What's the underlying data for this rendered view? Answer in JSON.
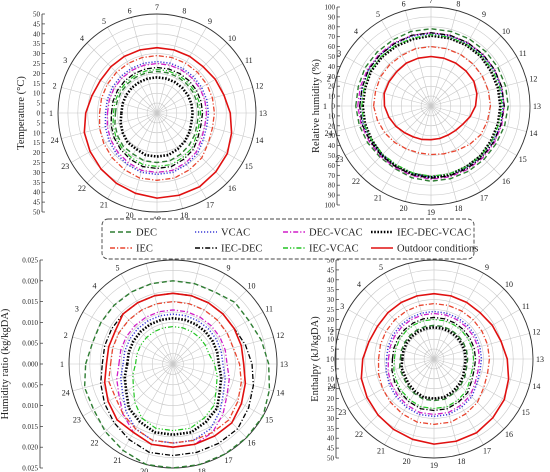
{
  "chart_data": [
    {
      "type": "line",
      "subtype": "polar-radar",
      "ylabel": "Temperature (°C)",
      "ylim": [
        0,
        50
      ],
      "rticks": [
        "50",
        "45",
        "40",
        "35",
        "30",
        "25",
        "20",
        "15",
        "10",
        "5",
        "0",
        "5",
        "10",
        "15",
        "20",
        "25",
        "30",
        "35",
        "40",
        "45",
        "50"
      ],
      "x": [
        1,
        2,
        3,
        4,
        5,
        6,
        7,
        8,
        9,
        10,
        11,
        12,
        13,
        14,
        15,
        16,
        17,
        18,
        19,
        20,
        21,
        22,
        23,
        24
      ],
      "series": [
        {
          "name": "DEC",
          "values": [
            21,
            21,
            21,
            21,
            21,
            21,
            21,
            21,
            21,
            21,
            21,
            21,
            21,
            21,
            22,
            23,
            24,
            25,
            25,
            25,
            24,
            24,
            23,
            22
          ]
        },
        {
          "name": "VCAC",
          "values": [
            26,
            26,
            26,
            26,
            26,
            26,
            26,
            26,
            26,
            26,
            26,
            26,
            26,
            26,
            27,
            29,
            30,
            31,
            31,
            31,
            30,
            29,
            28,
            27
          ]
        },
        {
          "name": "DEC-VCAC",
          "values": [
            25,
            25,
            25,
            25,
            25,
            25,
            25,
            25,
            25,
            25,
            25,
            25,
            25,
            25,
            26,
            28,
            29,
            30,
            30,
            30,
            29,
            28,
            27,
            26
          ]
        },
        {
          "name": "IEC-DEC-VCAC",
          "values": [
            18,
            18,
            18,
            18,
            18,
            18,
            18,
            18,
            18,
            18,
            18,
            18,
            18,
            18,
            19,
            20,
            21,
            22,
            22,
            22,
            21,
            21,
            20,
            19
          ]
        },
        {
          "name": "IEC",
          "values": [
            29,
            29,
            29,
            29,
            29,
            29,
            29,
            29,
            29,
            29,
            29,
            29,
            29,
            29,
            30,
            32,
            33,
            34,
            34,
            34,
            33,
            32,
            31,
            30
          ]
        },
        {
          "name": "IEC-DEC",
          "values": [
            23,
            23,
            23,
            23,
            23,
            23,
            23,
            23,
            23,
            23,
            23,
            23,
            23,
            23,
            24,
            26,
            27,
            28,
            28,
            28,
            27,
            26,
            25,
            24
          ]
        },
        {
          "name": "IEC-VCAC",
          "values": [
            22,
            22,
            22,
            22,
            22,
            22,
            22,
            22,
            22,
            22,
            22,
            22,
            22,
            22,
            23,
            25,
            26,
            27,
            27,
            27,
            26,
            25,
            24,
            23
          ]
        },
        {
          "name": "Outdoor conditions",
          "values": [
            36,
            34,
            33,
            33,
            33,
            33,
            33,
            33,
            33,
            33,
            34,
            35,
            37,
            39,
            41,
            42,
            43,
            43,
            43,
            42,
            41,
            40,
            39,
            38
          ]
        }
      ]
    },
    {
      "type": "line",
      "subtype": "polar-radar",
      "ylabel": "Relative humidity (%)",
      "ylim": [
        0,
        100
      ],
      "rticks": [
        "100",
        "90",
        "80",
        "70",
        "60",
        "50",
        "40",
        "30",
        "20",
        "10",
        "0",
        "10",
        "20",
        "30",
        "40",
        "50",
        "60",
        "70",
        "80",
        "90",
        "100"
      ],
      "x": [
        1,
        2,
        3,
        4,
        5,
        6,
        7,
        8,
        9,
        10,
        11,
        12,
        13,
        14,
        15,
        16,
        17,
        18,
        19,
        20,
        21,
        22,
        23,
        24
      ],
      "series": [
        {
          "name": "DEC",
          "values": [
            76,
            76,
            77,
            77,
            77,
            78,
            78,
            78,
            78,
            78,
            78,
            78,
            78,
            77,
            76,
            76,
            76,
            76,
            76,
            75,
            73,
            73,
            74,
            75
          ]
        },
        {
          "name": "VCAC",
          "values": [
            72,
            72,
            73,
            73,
            73,
            73,
            73,
            73,
            73,
            73,
            73,
            73,
            73,
            73,
            72,
            72,
            72,
            72,
            72,
            71,
            70,
            70,
            70,
            71
          ]
        },
        {
          "name": "DEC-VCAC",
          "values": [
            74,
            74,
            74,
            74,
            74,
            74,
            74,
            74,
            74,
            74,
            74,
            74,
            74,
            74,
            74,
            74,
            74,
            74,
            74,
            73,
            72,
            72,
            72,
            73
          ]
        },
        {
          "name": "IEC-DEC-VCAC",
          "values": [
            69,
            69,
            70,
            70,
            70,
            70,
            71,
            71,
            71,
            71,
            70,
            70,
            70,
            70,
            70,
            71,
            71,
            72,
            72,
            71,
            70,
            70,
            69,
            69
          ]
        },
        {
          "name": "IEC",
          "values": [
            58,
            58,
            59,
            59,
            59,
            60,
            60,
            60,
            60,
            60,
            60,
            60,
            60,
            59,
            58,
            55,
            52,
            50,
            49,
            49,
            50,
            52,
            54,
            56
          ]
        },
        {
          "name": "IEC-DEC",
          "values": [
            72,
            72,
            73,
            73,
            73,
            74,
            74,
            74,
            74,
            74,
            74,
            74,
            74,
            73,
            73,
            73,
            73,
            73,
            73,
            72,
            71,
            71,
            71,
            72
          ]
        },
        {
          "name": "IEC-VCAC",
          "values": [
            70,
            70,
            71,
            71,
            71,
            71,
            72,
            72,
            72,
            72,
            72,
            72,
            72,
            71,
            71,
            71,
            71,
            71,
            71,
            70,
            69,
            69,
            69,
            70
          ]
        },
        {
          "name": "Outdoor conditions",
          "values": [
            47,
            49,
            49,
            49,
            50,
            50,
            50,
            50,
            50,
            50,
            50,
            48,
            45,
            41,
            37,
            35,
            34,
            34,
            34,
            35,
            36,
            38,
            41,
            44
          ]
        }
      ]
    },
    {
      "type": "line",
      "subtype": "polar-radar",
      "ylabel": "Humidity ratio (kg/kgDA)",
      "ylim": [
        0,
        0.025
      ],
      "rticks": [
        "0.025",
        "0.020",
        "0.015",
        "0.010",
        "0.005",
        "0.000",
        "0.005",
        "0.010",
        "0.015",
        "0.020",
        "0.025"
      ],
      "x": [
        1,
        2,
        3,
        4,
        5,
        6,
        7,
        8,
        9,
        10,
        11,
        12,
        13,
        14,
        15,
        16,
        17,
        18,
        19,
        20,
        21,
        22,
        23,
        24
      ],
      "series": [
        {
          "name": "DEC",
          "values": [
            0.021,
            0.02,
            0.02,
            0.02,
            0.02,
            0.02,
            0.02,
            0.02,
            0.02,
            0.021,
            0.021,
            0.022,
            0.023,
            0.024,
            0.025,
            0.025,
            0.025,
            0.025,
            0.025,
            0.025,
            0.024,
            0.023,
            0.022,
            0.022
          ]
        },
        {
          "name": "VCAC",
          "values": [
            0.012,
            0.012,
            0.012,
            0.012,
            0.012,
            0.012,
            0.012,
            0.012,
            0.012,
            0.012,
            0.012,
            0.012,
            0.012,
            0.013,
            0.014,
            0.016,
            0.018,
            0.019,
            0.019,
            0.019,
            0.018,
            0.016,
            0.014,
            0.013
          ]
        },
        {
          "name": "DEC-VCAC",
          "values": [
            0.013,
            0.013,
            0.013,
            0.013,
            0.013,
            0.013,
            0.013,
            0.013,
            0.013,
            0.013,
            0.013,
            0.013,
            0.013,
            0.014,
            0.015,
            0.017,
            0.019,
            0.02,
            0.02,
            0.02,
            0.019,
            0.017,
            0.015,
            0.014
          ]
        },
        {
          "name": "IEC-DEC-VCAC",
          "values": [
            0.011,
            0.011,
            0.011,
            0.011,
            0.011,
            0.011,
            0.011,
            0.011,
            0.011,
            0.011,
            0.011,
            0.011,
            0.011,
            0.012,
            0.013,
            0.015,
            0.016,
            0.017,
            0.017,
            0.017,
            0.016,
            0.015,
            0.013,
            0.012
          ]
        },
        {
          "name": "IEC",
          "values": [
            0.015,
            0.015,
            0.015,
            0.015,
            0.015,
            0.015,
            0.015,
            0.015,
            0.015,
            0.015,
            0.015,
            0.015,
            0.016,
            0.017,
            0.018,
            0.019,
            0.019,
            0.019,
            0.019,
            0.019,
            0.018,
            0.017,
            0.016,
            0.016
          ]
        },
        {
          "name": "IEC-DEC",
          "values": [
            0.017,
            0.017,
            0.017,
            0.017,
            0.017,
            0.017,
            0.017,
            0.017,
            0.017,
            0.017,
            0.017,
            0.018,
            0.019,
            0.02,
            0.021,
            0.022,
            0.022,
            0.022,
            0.022,
            0.022,
            0.021,
            0.02,
            0.019,
            0.018
          ]
        },
        {
          "name": "IEC-VCAC",
          "values": [
            0.009,
            0.009,
            0.009,
            0.009,
            0.009,
            0.009,
            0.009,
            0.009,
            0.009,
            0.009,
            0.009,
            0.009,
            0.01,
            0.011,
            0.012,
            0.014,
            0.015,
            0.016,
            0.016,
            0.016,
            0.015,
            0.013,
            0.011,
            0.01
          ]
        },
        {
          "name": "Outdoor conditions",
          "values": [
            0.016,
            0.016,
            0.016,
            0.017,
            0.017,
            0.017,
            0.017,
            0.017,
            0.017,
            0.017,
            0.017,
            0.017,
            0.017,
            0.018,
            0.019,
            0.02,
            0.02,
            0.02,
            0.02,
            0.02,
            0.019,
            0.019,
            0.018,
            0.017
          ]
        }
      ]
    },
    {
      "type": "line",
      "subtype": "polar-radar",
      "ylabel": "Enthalpy (kJ/kgDA)",
      "ylim": [
        0,
        50
      ],
      "rticks": [
        "50",
        "45",
        "40",
        "35",
        "30",
        "25",
        "20",
        "15",
        "10",
        "5",
        "0",
        "5",
        "10",
        "15",
        "20",
        "25",
        "30",
        "35",
        "40",
        "45",
        "50"
      ],
      "x": [
        1,
        2,
        3,
        4,
        5,
        6,
        7,
        8,
        9,
        10,
        11,
        12,
        13,
        14,
        15,
        16,
        17,
        18,
        19,
        20,
        21,
        22,
        23,
        24
      ],
      "series": [
        {
          "name": "DEC",
          "values": [
            17,
            17,
            17,
            17,
            17,
            17,
            17,
            17,
            17,
            17,
            17,
            17,
            17,
            17,
            18,
            19,
            20,
            21,
            21,
            21,
            20,
            19,
            18,
            18
          ]
        },
        {
          "name": "VCAC",
          "values": [
            24,
            24,
            24,
            24,
            24,
            24,
            24,
            24,
            24,
            24,
            24,
            24,
            24,
            24,
            25,
            27,
            28,
            29,
            29,
            29,
            28,
            27,
            26,
            25
          ]
        },
        {
          "name": "DEC-VCAC",
          "values": [
            23,
            23,
            23,
            23,
            23,
            23,
            23,
            23,
            23,
            23,
            23,
            23,
            23,
            23,
            24,
            26,
            27,
            28,
            28,
            28,
            27,
            26,
            25,
            24
          ]
        },
        {
          "name": "IEC-DEC-VCAC",
          "values": [
            16,
            16,
            16,
            16,
            16,
            16,
            16,
            16,
            16,
            16,
            16,
            16,
            16,
            16,
            17,
            18,
            19,
            20,
            20,
            20,
            19,
            18,
            17,
            17
          ]
        },
        {
          "name": "IEC",
          "values": [
            28,
            28,
            28,
            28,
            28,
            28,
            28,
            28,
            28,
            28,
            28,
            28,
            28,
            28,
            29,
            31,
            32,
            33,
            33,
            33,
            32,
            31,
            30,
            29
          ]
        },
        {
          "name": "IEC-DEC",
          "values": [
            21,
            21,
            21,
            21,
            21,
            21,
            21,
            21,
            21,
            21,
            21,
            21,
            21,
            21,
            22,
            24,
            25,
            26,
            26,
            26,
            25,
            24,
            23,
            22
          ]
        },
        {
          "name": "IEC-VCAC",
          "values": [
            20,
            20,
            20,
            20,
            20,
            20,
            20,
            20,
            20,
            20,
            20,
            20,
            20,
            20,
            21,
            23,
            24,
            25,
            25,
            25,
            24,
            23,
            22,
            21
          ]
        },
        {
          "name": "Outdoor conditions",
          "values": [
            36,
            34,
            33,
            33,
            33,
            33,
            33,
            33,
            33,
            33,
            34,
            35,
            37,
            39,
            41,
            42,
            43,
            43,
            43,
            42,
            41,
            40,
            39,
            38
          ]
        }
      ]
    }
  ],
  "legend": [
    {
      "name": "DEC",
      "color": "#2e7d32",
      "dash": "dashed"
    },
    {
      "name": "VCAC",
      "color": "#3b3bd6",
      "dash": "dotted"
    },
    {
      "name": "DEC-VCAC",
      "color": "#d11fc8",
      "dash": "dashdot"
    },
    {
      "name": "IEC-DEC-VCAC",
      "color": "#000000",
      "dash": "dotted-bold"
    },
    {
      "name": "IEC",
      "color": "#e8452f",
      "dash": "dashdot"
    },
    {
      "name": "IEC-DEC",
      "color": "#000000",
      "dash": "dashdot"
    },
    {
      "name": "IEC-VCAC",
      "color": "#22c422",
      "dash": "dashdotdot"
    },
    {
      "name": "Outdoor conditions",
      "color": "#e01010",
      "dash": "solid"
    }
  ],
  "hours": [
    "1",
    "2",
    "3",
    "4",
    "5",
    "6",
    "7",
    "8",
    "9",
    "10",
    "11",
    "12",
    "13",
    "14",
    "15",
    "16",
    "17",
    "18",
    "19",
    "20",
    "21",
    "22",
    "23",
    "24"
  ]
}
